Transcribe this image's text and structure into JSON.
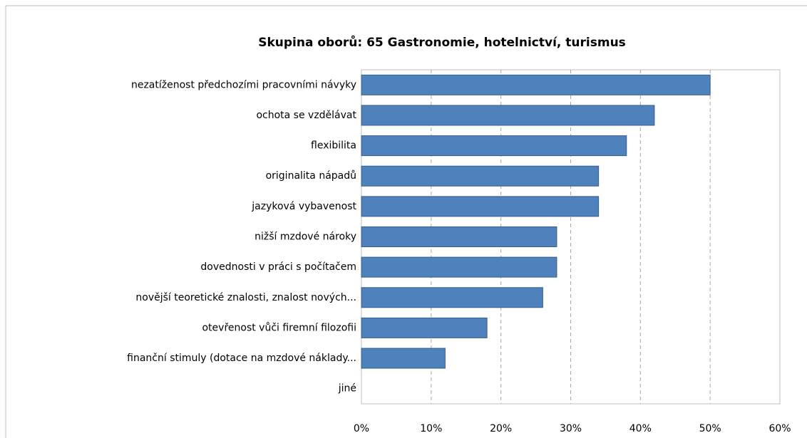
{
  "chart_data": {
    "type": "bar",
    "orientation": "horizontal",
    "title": "Skupina oborů: 65 Gastronomie, hotelnictví, turismus",
    "categories": [
      "nezatíženost předchozími pracovními návyky",
      "ochota se vzdělávat",
      "flexibilita",
      "originalita nápadů",
      "jazyková vybavenost",
      "nižší mzdové nároky",
      "dovednosti v práci s počítačem",
      "novější teoretické znalosti, znalost nových...",
      "otevřenost vůči firemní filozofii",
      "finanční stimuly (dotace na mzdové náklady...",
      "jiné"
    ],
    "values": [
      50,
      42,
      38,
      34,
      34,
      28,
      28,
      26,
      18,
      12,
      0
    ],
    "color": "#4f81bd",
    "xlim": [
      0,
      60
    ],
    "xticks": [
      {
        "value": 0,
        "label": "0%"
      },
      {
        "value": 10,
        "label": "10%"
      },
      {
        "value": 20,
        "label": "20%"
      },
      {
        "value": 30,
        "label": "30%"
      },
      {
        "value": 40,
        "label": "40%"
      },
      {
        "value": 50,
        "label": "50%"
      },
      {
        "value": 60,
        "label": "60%"
      }
    ],
    "grid": true
  }
}
